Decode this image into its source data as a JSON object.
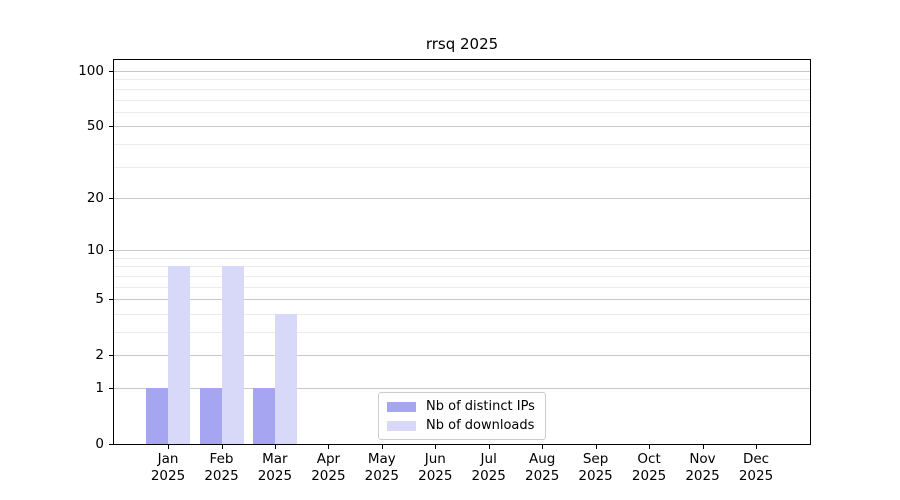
{
  "title": "rrsq 2025",
  "chart_data": {
    "type": "bar",
    "title": "rrsq 2025",
    "x_axis": {
      "months": [
        "Jan",
        "Feb",
        "Mar",
        "Apr",
        "May",
        "Jun",
        "Jul",
        "Aug",
        "Sep",
        "Oct",
        "Nov",
        "Dec"
      ],
      "year": "2025"
    },
    "y_axis": {
      "scale": "log1p",
      "ticks": [
        0,
        1,
        2,
        5,
        10,
        20,
        50,
        100
      ],
      "minor_gridlines": [
        3,
        4,
        6,
        7,
        8,
        9,
        30,
        40,
        60,
        70,
        80,
        90
      ],
      "range": [
        0,
        117
      ]
    },
    "series": [
      {
        "name": "Nb of distinct IPs",
        "color": "#a5a5f2",
        "values": [
          1,
          1,
          1,
          0,
          0,
          0,
          0,
          0,
          0,
          0,
          0,
          0
        ]
      },
      {
        "name": "Nb of downloads",
        "color": "#d8d8f8",
        "values": [
          8,
          8,
          4,
          0,
          0,
          0,
          0,
          0,
          0,
          0,
          0,
          0
        ]
      }
    ],
    "legend_position": "bottom-center-inside",
    "grid": true,
    "colors": {
      "background": "#ffffff",
      "gridline_major": "#c9c9c9",
      "gridline_minor": "#ebebeb",
      "axis": "#000000"
    }
  }
}
